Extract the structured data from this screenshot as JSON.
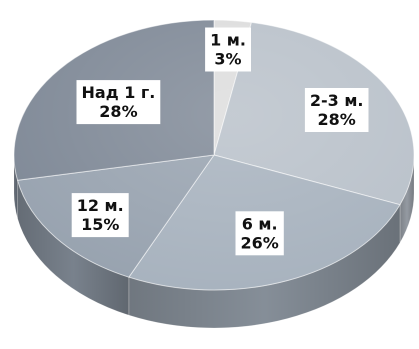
{
  "chart_data": {
    "type": "pie",
    "style": "3d",
    "start_angle_deg": 0,
    "direction": "clockwise",
    "slices": [
      {
        "label": "1 м.",
        "value": 3,
        "value_label": "3%"
      },
      {
        "label": "2-3 м.",
        "value": 28,
        "value_label": "28%"
      },
      {
        "label": "6 м.",
        "value": 26,
        "value_label": "26%"
      },
      {
        "label": "12 м.",
        "value": 15,
        "value_label": "15%"
      },
      {
        "label": "Над 1 г.",
        "value": 28,
        "value_label": "28%"
      }
    ],
    "colors": [
      "#dcdcdc",
      "#b8c0c9",
      "#a6b1bd",
      "#96a1ae",
      "#7d8795"
    ],
    "legend": "none",
    "labels_position": "inside"
  }
}
